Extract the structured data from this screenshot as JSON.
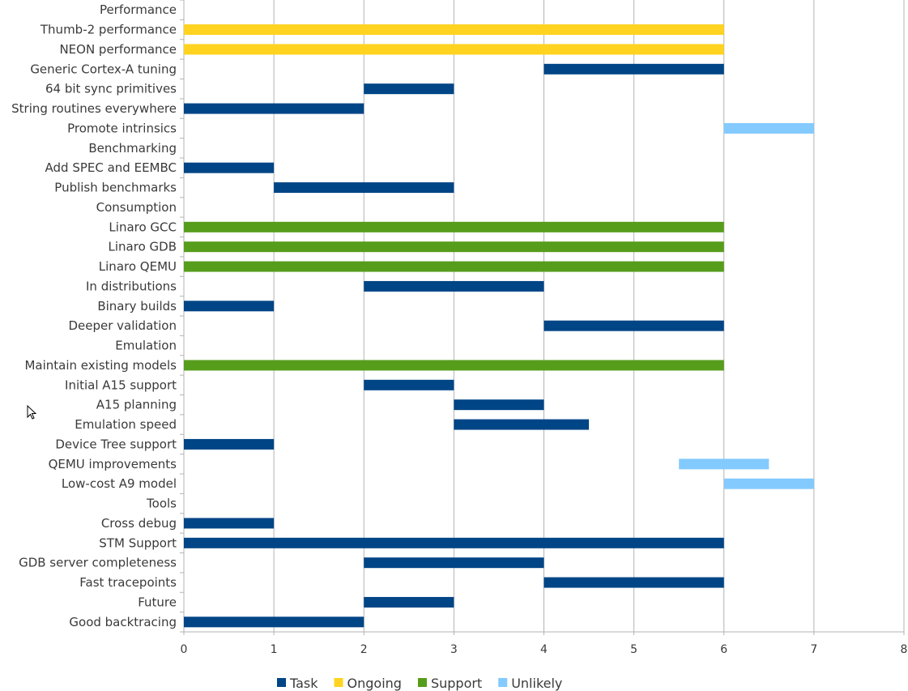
{
  "chart_data": {
    "type": "bar",
    "orientation": "horizontal-gantt",
    "xlim": [
      0,
      8
    ],
    "xticks": [
      0,
      1,
      2,
      3,
      4,
      5,
      6,
      7,
      8
    ],
    "grid": true,
    "legend_placement": "bottom",
    "series_colors": {
      "Task": "#004586",
      "Ongoing": "#ffd320",
      "Support": "#579d1c",
      "Unlikely": "#83caff"
    },
    "legend": [
      "Task",
      "Ongoing",
      "Support",
      "Unlikely"
    ],
    "rows": [
      {
        "label": "Performance"
      },
      {
        "label": "Thumb-2 performance",
        "start": 0,
        "end": 6,
        "series": "Ongoing"
      },
      {
        "label": "NEON performance",
        "start": 0,
        "end": 6,
        "series": "Ongoing"
      },
      {
        "label": "Generic Cortex-A tuning",
        "start": 4,
        "end": 6,
        "series": "Task"
      },
      {
        "label": "64 bit sync primitives",
        "start": 2,
        "end": 3,
        "series": "Task"
      },
      {
        "label": "String routines everywhere",
        "start": 0,
        "end": 2,
        "series": "Task"
      },
      {
        "label": "Promote intrinsics",
        "start": 6,
        "end": 7,
        "series": "Unlikely"
      },
      {
        "label": "Benchmarking"
      },
      {
        "label": "Add SPEC and EEMBC",
        "start": 0,
        "end": 1,
        "series": "Task"
      },
      {
        "label": "Publish benchmarks",
        "start": 1,
        "end": 3,
        "series": "Task"
      },
      {
        "label": "Consumption"
      },
      {
        "label": "Linaro GCC",
        "start": 0,
        "end": 6,
        "series": "Support"
      },
      {
        "label": "Linaro GDB",
        "start": 0,
        "end": 6,
        "series": "Support"
      },
      {
        "label": "Linaro QEMU",
        "start": 0,
        "end": 6,
        "series": "Support"
      },
      {
        "label": "In distributions",
        "start": 2,
        "end": 4,
        "series": "Task"
      },
      {
        "label": "Binary builds",
        "start": 0,
        "end": 1,
        "series": "Task"
      },
      {
        "label": "Deeper validation",
        "start": 4,
        "end": 6,
        "series": "Task"
      },
      {
        "label": "Emulation"
      },
      {
        "label": "Maintain existing models",
        "start": 0,
        "end": 6,
        "series": "Support"
      },
      {
        "label": "Initial A15 support",
        "start": 2,
        "end": 3,
        "series": "Task"
      },
      {
        "label": "A15 planning",
        "start": 3,
        "end": 4,
        "series": "Task"
      },
      {
        "label": "Emulation speed",
        "start": 3,
        "end": 4.5,
        "series": "Task"
      },
      {
        "label": "Device Tree support",
        "start": 0,
        "end": 1,
        "series": "Task"
      },
      {
        "label": "QEMU improvements",
        "start": 5.5,
        "end": 6.5,
        "series": "Unlikely"
      },
      {
        "label": "Low-cost A9 model",
        "start": 6,
        "end": 7,
        "series": "Unlikely"
      },
      {
        "label": "Tools"
      },
      {
        "label": "Cross debug",
        "start": 0,
        "end": 1,
        "series": "Task"
      },
      {
        "label": "STM Support",
        "start": 0,
        "end": 6,
        "series": "Task"
      },
      {
        "label": "GDB server completeness",
        "start": 2,
        "end": 4,
        "series": "Task"
      },
      {
        "label": "Fast tracepoints",
        "start": 4,
        "end": 6,
        "series": "Task"
      },
      {
        "label": "Future",
        "start": 2,
        "end": 3,
        "series": "Task"
      },
      {
        "label": "Good backtracing",
        "start": 0,
        "end": 2,
        "series": "Task"
      }
    ]
  }
}
